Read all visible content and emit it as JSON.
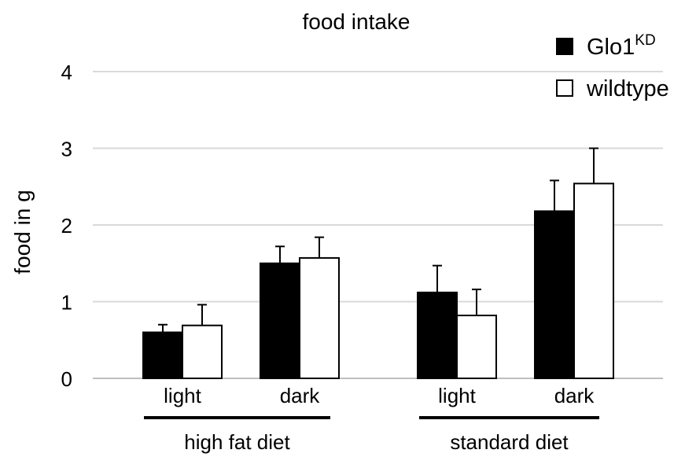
{
  "chart_data": {
    "type": "bar",
    "title": "food intake",
    "ylabel": "food in g",
    "xlabel": "",
    "ylim": [
      0,
      4
    ],
    "yticks": [
      0,
      1,
      2,
      3,
      4
    ],
    "grid": true,
    "legend_position": "top-right",
    "categories": [
      "light",
      "dark",
      "light",
      "dark"
    ],
    "groups": [
      {
        "label": "high fat diet",
        "categories": [
          "light",
          "dark"
        ]
      },
      {
        "label": "standard diet",
        "categories": [
          "light",
          "dark"
        ]
      }
    ],
    "series": [
      {
        "name": "Glo1",
        "name_superscript": "KD",
        "color": "#000000",
        "values": [
          0.6,
          1.5,
          1.12,
          2.18
        ],
        "errors": [
          0.1,
          0.22,
          0.35,
          0.4
        ]
      },
      {
        "name": "wildtype",
        "color": "#ffffff",
        "values": [
          0.69,
          1.57,
          0.82,
          2.54
        ],
        "errors": [
          0.27,
          0.27,
          0.34,
          0.46
        ]
      }
    ]
  }
}
